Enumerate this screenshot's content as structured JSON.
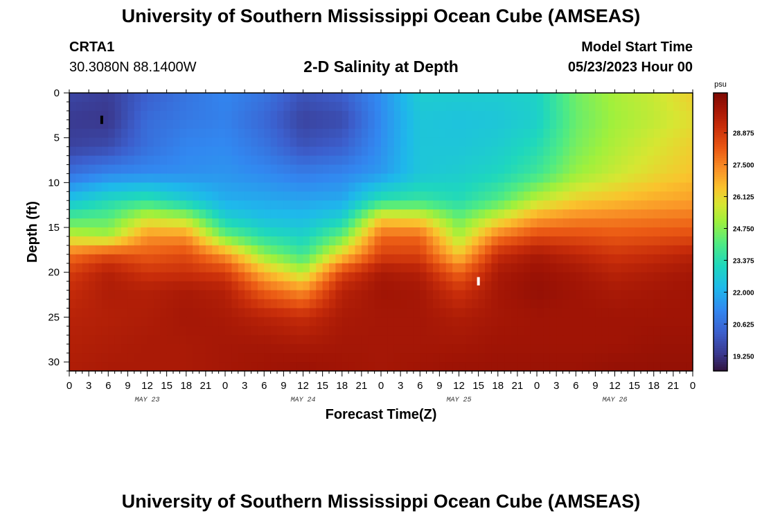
{
  "header": {
    "title": "University of Southern Mississippi Ocean Cube (AMSEAS)",
    "station": "CRTA1",
    "coords": "30.3080N  88.1400W",
    "plot_title": "2-D Salinity at Depth",
    "model_start_label": "Model Start Time",
    "model_start_value": "05/23/2023 Hour 00"
  },
  "footer": {
    "title": "University of Southern Mississippi Ocean Cube (AMSEAS)"
  },
  "chart_data": {
    "type": "heatmap",
    "title": "2-D Salinity at Depth",
    "xlabel": "Forecast Time(Z)",
    "ylabel": "Depth (ft)",
    "x_range_hours": [
      0,
      96
    ],
    "ylim": [
      0,
      31
    ],
    "y_ticks": [
      0,
      5,
      10,
      15,
      20,
      25,
      30
    ],
    "x_tick_hours": [
      0,
      3,
      6,
      9,
      12,
      15,
      18,
      21,
      24,
      27,
      30,
      33,
      36,
      39,
      42,
      45,
      48,
      51,
      54,
      57,
      60,
      63,
      66,
      69,
      72,
      75,
      78,
      81,
      84,
      87,
      90,
      93,
      96
    ],
    "x_tick_labels": [
      "0",
      "3",
      "6",
      "9",
      "12",
      "15",
      "18",
      "21",
      "0",
      "3",
      "6",
      "9",
      "12",
      "15",
      "18",
      "21",
      "0",
      "3",
      "6",
      "9",
      "12",
      "15",
      "18",
      "21",
      "0",
      "3",
      "6",
      "9",
      "12",
      "15",
      "18",
      "21",
      "0"
    ],
    "day_labels": [
      {
        "hour": 12,
        "label": "MAY 23"
      },
      {
        "hour": 36,
        "label": "MAY 24"
      },
      {
        "hour": 60,
        "label": "MAY 25"
      },
      {
        "hour": 84,
        "label": "MAY 26"
      }
    ],
    "colorbar": {
      "unit": "psu",
      "min": 18.6,
      "max": 30.6,
      "tick_values": [
        19.25,
        20.625,
        22.0,
        23.375,
        24.75,
        26.125,
        27.5,
        28.875
      ],
      "tick_labels": [
        "19.250",
        "20.625",
        "22.000",
        "23.375",
        "24.750",
        "26.125",
        "27.500",
        "28.875"
      ]
    },
    "grid": {
      "hours": [
        0,
        6,
        12,
        18,
        24,
        30,
        36,
        42,
        48,
        54,
        60,
        66,
        72,
        78,
        84,
        90,
        96
      ],
      "depths": [
        0,
        3,
        6,
        9,
        12,
        14,
        16,
        18,
        20,
        22,
        25,
        28,
        31
      ],
      "salinity": [
        [
          19.7,
          19.5,
          20.3,
          20.8,
          21.2,
          20.8,
          20.0,
          20.3,
          21.4,
          22.8,
          22.8,
          22.8,
          23.0,
          24.5,
          25.2,
          25.6,
          26.3
        ],
        [
          19.4,
          19.3,
          20.6,
          20.9,
          21.1,
          20.5,
          19.6,
          19.8,
          21.3,
          22.6,
          22.5,
          22.6,
          22.9,
          24.4,
          25.1,
          25.5,
          26.0
        ],
        [
          19.6,
          19.8,
          20.7,
          21.2,
          21.3,
          20.8,
          20.0,
          20.3,
          21.4,
          22.6,
          22.6,
          22.8,
          23.3,
          24.6,
          25.3,
          25.8,
          26.3
        ],
        [
          20.7,
          21.2,
          21.3,
          21.4,
          21.5,
          21.3,
          21.0,
          21.2,
          21.6,
          22.6,
          22.8,
          23.1,
          23.8,
          25.0,
          25.6,
          26.1,
          26.5
        ],
        [
          22.5,
          23.2,
          23.6,
          22.8,
          22.0,
          21.9,
          21.8,
          21.9,
          23.5,
          23.7,
          23.3,
          24.1,
          25.5,
          26.3,
          26.6,
          26.9,
          27.1
        ],
        [
          24.0,
          24.2,
          25.7,
          25.3,
          22.9,
          22.4,
          22.3,
          22.9,
          26.3,
          26.1,
          24.4,
          25.8,
          27.1,
          27.5,
          27.6,
          27.7,
          27.8
        ],
        [
          25.6,
          25.2,
          27.3,
          27.3,
          24.5,
          23.4,
          23.0,
          24.4,
          28.0,
          28.0,
          25.2,
          27.7,
          28.6,
          28.5,
          28.3,
          28.4,
          28.5
        ],
        [
          27.8,
          28.5,
          28.2,
          28.5,
          27.2,
          24.9,
          23.8,
          26.3,
          28.7,
          28.7,
          26.4,
          29.2,
          29.8,
          29.4,
          29.0,
          29.2,
          29.5
        ],
        [
          28.8,
          29.6,
          29.0,
          29.1,
          28.8,
          26.7,
          25.4,
          28.6,
          29.8,
          29.6,
          28.0,
          29.8,
          30.1,
          29.9,
          29.5,
          29.7,
          29.9
        ],
        [
          29.2,
          29.7,
          29.6,
          29.8,
          29.6,
          28.1,
          27.3,
          29.5,
          30.0,
          29.9,
          29.0,
          29.9,
          30.2,
          30.0,
          29.8,
          29.9,
          30.0
        ],
        [
          29.5,
          29.6,
          29.7,
          29.9,
          29.8,
          29.5,
          29.2,
          29.8,
          29.9,
          29.9,
          29.7,
          29.9,
          30.0,
          30.0,
          30.0,
          30.0,
          30.0
        ],
        [
          29.6,
          29.7,
          29.8,
          29.8,
          29.9,
          29.9,
          29.8,
          29.9,
          29.9,
          29.9,
          29.9,
          30.0,
          30.0,
          30.0,
          30.0,
          30.1,
          30.1
        ],
        [
          29.7,
          29.8,
          29.8,
          29.8,
          29.9,
          30.0,
          30.1,
          30.0,
          29.9,
          30.0,
          30.1,
          30.1,
          30.1,
          30.1,
          30.2,
          30.2,
          30.2
        ]
      ]
    },
    "markers": [
      {
        "hour": 5,
        "depth": 3,
        "color": "#000000"
      },
      {
        "hour": 63,
        "depth": 21,
        "color": "#ffffff"
      }
    ]
  }
}
